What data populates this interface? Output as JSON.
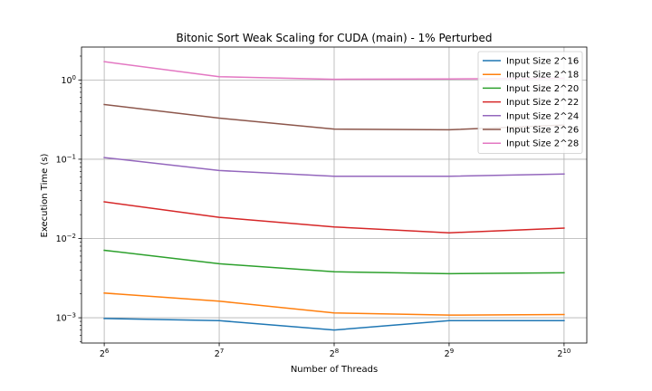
{
  "chart_data": {
    "type": "line",
    "title": "Bitonic Sort Weak Scaling for CUDA (main) - 1% Perturbed",
    "xlabel": "Number of Threads",
    "ylabel": "Execution Time (s)",
    "x_scale": "log2",
    "y_scale": "log10",
    "x": [
      64,
      128,
      256,
      512,
      1024
    ],
    "x_tick_labels": [
      {
        "base": "2",
        "exp": "6"
      },
      {
        "base": "2",
        "exp": "7"
      },
      {
        "base": "2",
        "exp": "8"
      },
      {
        "base": "2",
        "exp": "9"
      },
      {
        "base": "2",
        "exp": "10"
      }
    ],
    "y_tick_labels": [
      {
        "value": 0.001,
        "base": "10",
        "exp": "−3"
      },
      {
        "value": 0.01,
        "base": "10",
        "exp": "−2"
      },
      {
        "value": 0.1,
        "base": "10",
        "exp": "−1"
      },
      {
        "value": 1,
        "base": "10",
        "exp": "0"
      }
    ],
    "ylim": [
      0.00048,
      2.6
    ],
    "grid": true,
    "legend_position": "top-right",
    "series": [
      {
        "name": "Input Size 2^16",
        "color": "#1f77b4",
        "values": [
          0.00098,
          0.00092,
          0.0007,
          0.00092,
          0.00092
        ]
      },
      {
        "name": "Input Size 2^18",
        "color": "#ff7f0e",
        "values": [
          0.00205,
          0.00162,
          0.00115,
          0.00108,
          0.0011
        ]
      },
      {
        "name": "Input Size 2^20",
        "color": "#2ca02c",
        "values": [
          0.0071,
          0.0048,
          0.0038,
          0.0036,
          0.0037
        ]
      },
      {
        "name": "Input Size 2^22",
        "color": "#d62728",
        "values": [
          0.029,
          0.0185,
          0.014,
          0.0118,
          0.0135
        ]
      },
      {
        "name": "Input Size 2^24",
        "color": "#9467bd",
        "values": [
          0.105,
          0.072,
          0.061,
          0.061,
          0.065
        ]
      },
      {
        "name": "Input Size 2^26",
        "color": "#8c564b",
        "values": [
          0.49,
          0.33,
          0.24,
          0.235,
          0.27
        ]
      },
      {
        "name": "Input Size 2^28",
        "color": "#e377c2",
        "values": [
          1.7,
          1.1,
          1.02,
          1.03,
          1.05
        ]
      }
    ]
  }
}
